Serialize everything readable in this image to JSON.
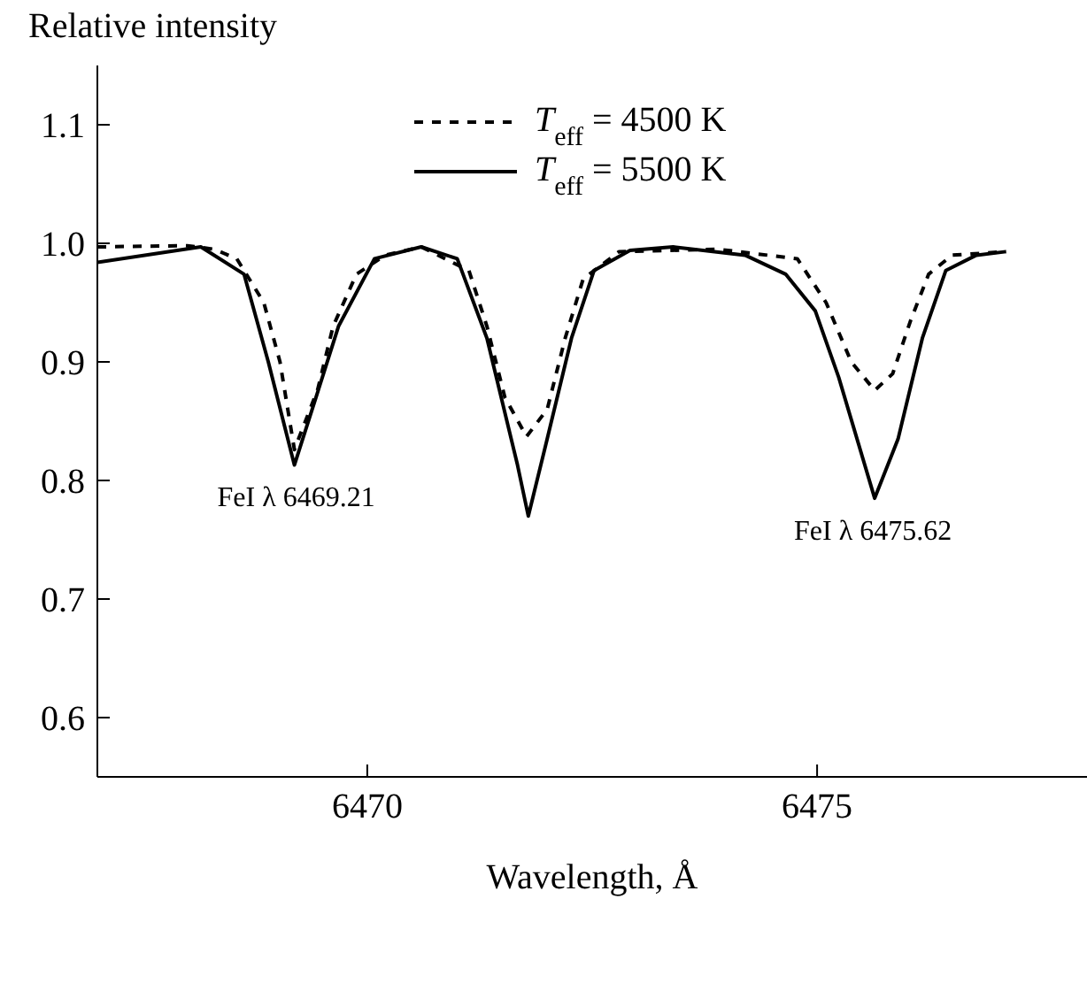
{
  "chart_data": {
    "type": "line",
    "ylabel": "Relative intensity",
    "xlabel": "Wavelength, Å",
    "xlim": [
      6467,
      6478
    ],
    "xticks": [
      6470,
      6475
    ],
    "ylim": [
      0.55,
      1.15
    ],
    "yticks": [
      0.6,
      0.7,
      0.8,
      0.9,
      {
        "value": 1,
        "label": "1.0"
      },
      1.1
    ],
    "grid": false,
    "legend": "top",
    "marker": "none",
    "series": [
      {
        "name": "T$_{eff}$ = 4500 K",
        "color": "#000000",
        "line_style": "dashed",
        "x": [
          6467,
          6468,
          6468.3,
          6468.55,
          6468.85,
          6469.03,
          6469.19,
          6469.45,
          6469.62,
          6469.88,
          6470.2,
          6470.6,
          6471.13,
          6471.33,
          6471.53,
          6471.77,
          6472.0,
          6472.2,
          6472.4,
          6472.8,
          6473.9,
          6474.78,
          6475.1,
          6475.38,
          6475.64,
          6475.84,
          6476.04,
          6476.24,
          6476.5,
          6477.1
        ],
        "values": [
          0.997,
          0.998,
          0.995,
          0.987,
          0.95,
          0.9,
          0.826,
          0.877,
          0.93,
          0.974,
          0.99,
          0.997,
          0.977,
          0.93,
          0.87,
          0.837,
          0.86,
          0.92,
          0.97,
          0.993,
          0.995,
          0.987,
          0.95,
          0.9,
          0.876,
          0.89,
          0.935,
          0.974,
          0.99,
          0.993
        ]
      },
      {
        "name": "T$_{eff}$ = 5500 K",
        "color": "#000000",
        "line_style": "solid",
        "x": [
          6467,
          6468.15,
          6468.63,
          6468.9,
          6469.19,
          6469.43,
          6469.68,
          6470.08,
          6470.6,
          6471.0,
          6471.33,
          6471.67,
          6471.79,
          6472.0,
          6472.27,
          6472.52,
          6472.92,
          6473.4,
          6474.2,
          6474.65,
          6474.98,
          6475.24,
          6475.64,
          6475.9,
          6476.17,
          6476.43,
          6476.77,
          6477.1
        ],
        "values": [
          0.984,
          0.997,
          0.974,
          0.9,
          0.813,
          0.87,
          0.93,
          0.987,
          0.997,
          0.987,
          0.92,
          0.813,
          0.77,
          0.835,
          0.92,
          0.977,
          0.994,
          0.997,
          0.99,
          0.974,
          0.943,
          0.887,
          0.785,
          0.835,
          0.92,
          0.977,
          0.99,
          0.993
        ]
      }
    ],
    "annotations": [
      {
        "text": "FeI λ 6469.21",
        "x": 6469.21,
        "y": 0.813
      },
      {
        "text": "FeI λ 6475.62",
        "x": 6475.62,
        "y": 0.785
      }
    ]
  }
}
